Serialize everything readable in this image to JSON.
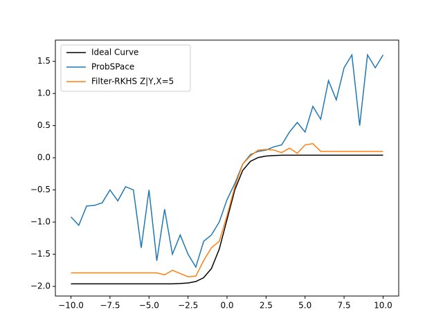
{
  "chart_data": {
    "type": "line",
    "x": [
      -10,
      -9.5,
      -9,
      -8.5,
      -8,
      -7.5,
      -7,
      -6.5,
      -6,
      -5.5,
      -5,
      -4.5,
      -4,
      -3.5,
      -3,
      -2.5,
      -2,
      -1.5,
      -1,
      -0.5,
      0,
      0.5,
      1,
      1.5,
      2,
      2.5,
      3,
      3.5,
      4,
      4.5,
      5,
      5.5,
      6,
      6.5,
      7,
      7.5,
      8,
      8.5,
      9,
      9.5,
      10
    ],
    "series": [
      {
        "name": "Ideal Curve",
        "color": "#000000",
        "values": [
          -1.96,
          -1.96,
          -1.96,
          -1.96,
          -1.96,
          -1.96,
          -1.96,
          -1.96,
          -1.96,
          -1.96,
          -1.96,
          -1.96,
          -1.96,
          -1.96,
          -1.955,
          -1.947,
          -1.924,
          -1.865,
          -1.722,
          -1.422,
          -0.96,
          -0.498,
          -0.198,
          -0.055,
          0.004,
          0.027,
          0.035,
          0.04,
          0.04,
          0.04,
          0.04,
          0.04,
          0.04,
          0.04,
          0.04,
          0.04,
          0.04,
          0.04,
          0.04,
          0.04,
          0.04
        ]
      },
      {
        "name": "ProbSPace",
        "color": "#1f77b4",
        "values": [
          -0.92,
          -1.05,
          -0.75,
          -0.74,
          -0.7,
          -0.5,
          -0.67,
          -0.45,
          -0.5,
          -1.4,
          -0.5,
          -1.6,
          -0.8,
          -1.5,
          -1.2,
          -1.5,
          -1.7,
          -1.3,
          -1.2,
          -1.0,
          -0.65,
          -0.4,
          -0.1,
          0.05,
          0.1,
          0.12,
          0.17,
          0.2,
          0.4,
          0.55,
          0.4,
          0.8,
          0.6,
          1.2,
          0.9,
          1.4,
          1.6,
          0.5,
          1.6,
          1.4,
          1.6
        ]
      },
      {
        "name": "Filter-RKHS Z|Y,X=5",
        "color": "#ff7f0e",
        "values": [
          -1.79,
          -1.79,
          -1.79,
          -1.79,
          -1.79,
          -1.79,
          -1.79,
          -1.79,
          -1.79,
          -1.79,
          -1.79,
          -1.79,
          -1.82,
          -1.75,
          -1.8,
          -1.85,
          -1.84,
          -1.6,
          -1.4,
          -1.3,
          -0.9,
          -0.45,
          -0.1,
          0.03,
          0.12,
          0.13,
          0.12,
          0.08,
          0.15,
          0.07,
          0.2,
          0.22,
          0.1,
          0.1,
          0.1,
          0.1,
          0.1,
          0.1,
          0.1,
          0.1,
          0.1
        ]
      }
    ],
    "xlim": [
      -11,
      11
    ],
    "ylim": [
      -2.15,
      1.83
    ],
    "xticks": [
      {
        "value": -10,
        "label": "−10.0"
      },
      {
        "value": -7.5,
        "label": "−7.5"
      },
      {
        "value": -5,
        "label": "−5.0"
      },
      {
        "value": -2.5,
        "label": "−2.5"
      },
      {
        "value": 0,
        "label": "0.0"
      },
      {
        "value": 2.5,
        "label": "2.5"
      },
      {
        "value": 5,
        "label": "5.0"
      },
      {
        "value": 7.5,
        "label": "7.5"
      },
      {
        "value": 10,
        "label": "10.0"
      }
    ],
    "yticks": [
      {
        "value": -2,
        "label": "−2.0"
      },
      {
        "value": -1.5,
        "label": "−1.5"
      },
      {
        "value": -1,
        "label": "−1.0"
      },
      {
        "value": -0.5,
        "label": "−0.5"
      },
      {
        "value": 0,
        "label": "0.0"
      },
      {
        "value": 0.5,
        "label": "0.5"
      },
      {
        "value": 1,
        "label": "1.0"
      },
      {
        "value": 1.5,
        "label": "1.5"
      }
    ],
    "legend": "upper left"
  }
}
